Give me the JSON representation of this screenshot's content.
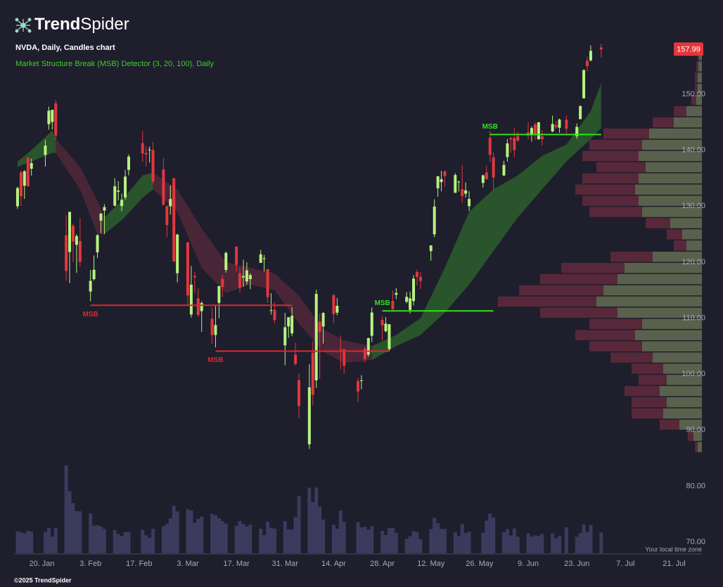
{
  "header": {
    "logo_bold": "Trend",
    "logo_light": "Spider"
  },
  "footer": {
    "timezone": "Your local time zone",
    "copyright": "©2025 TrendSpider"
  },
  "chart_data": {
    "type": "candlestick",
    "title": "NVDA, Daily, Candles chart",
    "subtitle": "Market Structure Break (MSB) Detector (3, 20, 100), Daily",
    "up_color": "#b7f27e",
    "down_color": "#e2373d",
    "volume_color": "#3b3b5e",
    "subtitle_color": "#3fcf2a",
    "x": [
      "13. Jan",
      "14. Jan",
      "15. Jan",
      "16. Jan",
      "17. Jan",
      "21. Jan",
      "22. Jan",
      "23. Jan",
      "24. Jan",
      "27. Jan",
      "28. Jan",
      "29. Jan",
      "30. Jan",
      "31. Jan",
      "3. Feb",
      "4. Feb",
      "5. Feb",
      "6. Feb",
      "7. Feb",
      "10. Feb",
      "11. Feb",
      "12. Feb",
      "13. Feb",
      "14. Feb",
      "18. Feb",
      "19. Feb",
      "20. Feb",
      "21. Feb",
      "24. Feb",
      "25. Feb",
      "26. Feb",
      "27. Feb",
      "28. Feb",
      "3. Mar",
      "4. Mar",
      "5. Mar",
      "6. Mar",
      "7. Mar",
      "10. Mar",
      "11. Mar",
      "12. Mar",
      "13. Mar",
      "14. Mar",
      "17. Mar",
      "18. Mar",
      "19. Mar",
      "20. Mar",
      "21. Mar",
      "24. Mar",
      "25. Mar",
      "26. Mar",
      "27. Mar",
      "28. Mar",
      "31. Mar",
      "1. Apr",
      "2. Apr",
      "3. Apr",
      "4. Apr",
      "7. Apr",
      "8. Apr",
      "9. Apr",
      "10. Apr",
      "11. Apr",
      "14. Apr",
      "15. Apr",
      "16. Apr",
      "17. Apr",
      "21. Apr",
      "22. Apr",
      "23. Apr",
      "24. Apr",
      "25. Apr",
      "28. Apr",
      "29. Apr",
      "30. Apr",
      "1. May",
      "2. May",
      "5. May",
      "6. May",
      "7. May",
      "8. May",
      "9. May",
      "12. May",
      "13. May",
      "14. May",
      "15. May",
      "16. May",
      "19. May",
      "20. May",
      "21. May",
      "22. May",
      "23. May",
      "27. May",
      "28. May",
      "29. May",
      "30. May",
      "2. Jun",
      "3. Jun",
      "4. Jun",
      "5. Jun",
      "6. Jun",
      "9. Jun",
      "10. Jun",
      "11. Jun",
      "12. Jun",
      "13. Jun",
      "16. Jun",
      "17. Jun",
      "18. Jun",
      "20. Jun",
      "23. Jun",
      "24. Jun",
      "25. Jun",
      "26. Jun",
      "27. Jun",
      "30. Jun"
    ],
    "open": [
      129.99,
      136.05,
      133.65,
      138.64,
      136.69,
      139.16,
      144.66,
      145.05,
      148.37,
      124.8,
      121.81,
      126.5,
      123.1,
      123.78,
      114.75,
      116.96,
      121.76,
      127.42,
      129.22,
      130.09,
      132.58,
      130.02,
      131.56,
      136.48,
      141.27,
      139.51,
      140.03,
      140.04,
      136.56,
      129.98,
      129.99,
      135.0,
      118.02,
      123.51,
      110.65,
      117.58,
      113.53,
      111.25,
      109.9,
      106.99,
      112.73,
      117.03,
      118.61,
      122.74,
      118.0,
      117.27,
      116.55,
      116.98,
      119.88,
      120.55,
      118.73,
      111.35,
      111.49,
      105.13,
      108.52,
      107.29,
      103.51,
      98.91,
      87.46,
      103.81,
      98.89,
      109.37,
      108.5,
      114.11,
      110.97,
      104.55,
      104.45,
      98.77,
      98.78,
      104.52,
      103.48,
      106.85,
      109.69,
      107.67,
      104.47,
      113.08,
      114.18,
      112.91,
      111.48,
      113.05,
      118.25,
      117.35,
      121.97,
      124.98,
      133.2,
      134.3,
      136.22,
      132.39,
      134.29,
      133.06,
      132.23,
      130.0,
      134.15,
      136.03,
      142.25,
      138.72,
      135.49,
      138.78,
      142.19,
      142.17,
      142.51,
      143.19,
      142.69,
      144.61,
      141.97,
      142.48,
      143.35,
      144.49,
      144.01,
      145.45,
      142.5,
      145.56,
      149.27,
      155.98,
      156.04,
      158.37
    ],
    "high": [
      133.49,
      136.38,
      136.45,
      138.75,
      138.5,
      141.83,
      147.79,
      147.23,
      148.97,
      128.4,
      129.0,
      126.89,
      125.0,
      127.85,
      118.57,
      121.2,
      125.0,
      128.77,
      130.37,
      135.0,
      134.48,
      132.24,
      136.5,
      139.25,
      143.44,
      140.66,
      140.67,
      141.46,
      138.59,
      130.2,
      133.73,
      135.01,
      125.09,
      123.7,
      119.31,
      118.28,
      115.35,
      113.0,
      111.85,
      112.23,
      115.35,
      117.76,
      121.89,
      122.9,
      119.02,
      120.45,
      120.0,
      117.99,
      122.22,
      121.29,
      118.84,
      114.45,
      112.87,
      110.96,
      110.2,
      111.98,
      105.63,
      100.13,
      101.75,
      105.85,
      115.1,
      110.86,
      111.06,
      114.29,
      113.62,
      106.92,
      104.47,
      99.3,
      99.81,
      104.8,
      106.54,
      111.92,
      110.37,
      110.2,
      108.92,
      114.94,
      115.4,
      114.67,
      114.74,
      117.68,
      118.68,
      118.23,
      123.0,
      131.22,
      135.44,
      136.3,
      136.35,
      135.87,
      134.58,
      137.4,
      134.25,
      132.68,
      135.66,
      137.25,
      143.49,
      139.62,
      138.12,
      142.0,
      142.39,
      144.0,
      143.27,
      145.0,
      144.29,
      144.99,
      145.0,
      143.58,
      146.18,
      145.22,
      145.65,
      146.2,
      144.78,
      147.96,
      154.45,
      156.72,
      158.71,
      158.99
    ],
    "low": [
      129.51,
      130.05,
      131.29,
      133.49,
      135.46,
      137.09,
      143.67,
      143.72,
      141.88,
      116.7,
      116.25,
      120.05,
      118.1,
      119.19,
      113.01,
      116.7,
      120.76,
      125.21,
      125.0,
      129.96,
      131.02,
      129.08,
      131.17,
      135.5,
      137.93,
      137.11,
      137.78,
      134.03,
      130.08,
      124.44,
      128.49,
      120.01,
      116.4,
      112.28,
      110.11,
      114.51,
      110.22,
      107.56,
      105.46,
      104.77,
      109.98,
      113.79,
      118.15,
      118.3,
      114.54,
      115.6,
      116.0,
      115.19,
      119.86,
      118.35,
      112.7,
      110.66,
      109.07,
      101.58,
      106.47,
      106.79,
      101.6,
      92.11,
      86.62,
      94.46,
      97.53,
      99.15,
      105.45,
      109.07,
      110.5,
      100.88,
      100.05,
      95.04,
      97.28,
      102.02,
      103.11,
      105.73,
      106.02,
      107.44,
      104.08,
      111.3,
      113.37,
      112.66,
      110.82,
      112.28,
      115.85,
      115.21,
      120.28,
      124.47,
      131.68,
      132.66,
      133.46,
      132.39,
      132.62,
      130.59,
      131.55,
      129.16,
      133.31,
      134.79,
      137.91,
      132.92,
      135.4,
      137.95,
      139.55,
      138.83,
      141.51,
      141.94,
      141.53,
      141.87,
      141.85,
      140.85,
      143.2,
      143.78,
      143.12,
      142.65,
      142.03,
      145.5,
      149.26,
      154.1,
      155.85,
      156.54
    ],
    "close": [
      133.23,
      131.76,
      136.24,
      133.57,
      137.71,
      140.83,
      147.07,
      147.22,
      142.62,
      118.42,
      128.99,
      123.7,
      124.65,
      120.07,
      116.66,
      118.65,
      124.83,
      128.68,
      129.84,
      133.57,
      132.8,
      131.14,
      135.29,
      138.85,
      139.4,
      139.23,
      140.11,
      134.43,
      130.28,
      126.63,
      131.28,
      120.15,
      124.92,
      114.06,
      115.99,
      117.3,
      110.57,
      112.69,
      106.98,
      108.76,
      115.74,
      115.58,
      121.67,
      119.53,
      115.43,
      117.52,
      118.53,
      117.7,
      121.41,
      120.69,
      113.76,
      111.43,
      109.67,
      108.38,
      110.15,
      110.42,
      101.8,
      94.31,
      97.64,
      96.3,
      114.33,
      107.57,
      110.93,
      110.71,
      112.2,
      104.49,
      101.49,
      96.91,
      98.89,
      102.71,
      106.43,
      111.01,
      108.73,
      109.02,
      108.92,
      111.61,
      114.5,
      113.82,
      113.54,
      117.06,
      117.37,
      116.65,
      123.0,
      129.93,
      135.34,
      134.83,
      135.4,
      135.57,
      134.38,
      131.8,
      132.83,
      131.29,
      135.5,
      134.81,
      139.19,
      135.13,
      137.38,
      141.22,
      141.92,
      139.99,
      141.72,
      142.63,
      143.96,
      142.83,
      145.0,
      141.97,
      144.69,
      144.12,
      145.48,
      143.85,
      144.17,
      147.9,
      154.31,
      155.02,
      157.75,
      157.99
    ],
    "volume": [
      204,
      196,
      185,
      210,
      201,
      197,
      237,
      155,
      234,
      818,
      579,
      467,
      392,
      390,
      371,
      256,
      262,
      251,
      228,
      216,
      178,
      160,
      198,
      196,
      219,
      168,
      144,
      228,
      251,
      272,
      323,
      443,
      389,
      411,
      399,
      284,
      321,
      341,
      366,
      354,
      326,
      299,
      277,
      255,
      299,
      273,
      248,
      266,
      228,
      168,
      294,
      236,
      229,
      299,
      222,
      220,
      338,
      532,
      611,
      476,
      612,
      437,
      313,
      264,
      228,
      397,
      291,
      288,
      241,
      247,
      220,
      251,
      207,
      170,
      235,
      236,
      190,
      133,
      158,
      206,
      198,
      132,
      225,
      330,
      281,
      226,
      226,
      194,
      161,
      271,
      187,
      199,
      192,
      304,
      369,
      333,
      197,
      225,
      167,
      231,
      153,
      185,
      155,
      167,
      162,
      180,
      183,
      139,
      161,
      242,
      154,
      188,
      269,
      198,
      263,
      194
    ],
    "xlim": [
      "12. Jan",
      "29. Jul"
    ],
    "xticks": [
      "20. Jan",
      "3. Feb",
      "17. Feb",
      "3. Mar",
      "17. Mar",
      "31. Mar",
      "14. Apr",
      "28. Apr",
      "12. May",
      "26. May",
      "9. Jun",
      "23. Jun",
      "7. Jul",
      "21. Jul"
    ],
    "ylim": [
      68,
      159.3
    ],
    "yticks": [
      {
        "value": 70,
        "label": "70.00"
      },
      {
        "value": 80,
        "label": "80.00"
      },
      {
        "value": 90,
        "label": "90.00"
      },
      {
        "value": 100,
        "label": "100.00"
      },
      {
        "value": 110,
        "label": "110.00"
      },
      {
        "value": 120,
        "label": "120.00"
      },
      {
        "value": 130,
        "label": "130.00"
      },
      {
        "value": 140,
        "label": "140.00"
      },
      {
        "value": 150,
        "label": "150.00"
      }
    ],
    "grid": false,
    "bands": [
      {
        "color": "#2f6b2c",
        "x": [
          "13. Jan",
          "17. Jan",
          "23. Jan",
          "24. Jan"
        ],
        "upper": [
          138,
          140,
          143.5,
          142
        ],
        "lower": [
          137,
          138,
          139.5,
          139.5
        ]
      },
      {
        "color": "#5b2a3c",
        "x": [
          "24. Jan",
          "31. Jan",
          "5. Feb",
          "7. Feb"
        ],
        "upper": [
          142,
          137,
          131,
          128
        ],
        "lower": [
          139.5,
          133,
          125,
          125
        ]
      },
      {
        "color": "#2f6b2c",
        "x": [
          "7. Feb",
          "12. Feb",
          "18. Feb",
          "21. Feb"
        ],
        "upper": [
          128,
          131,
          135.5,
          136
        ],
        "lower": [
          125,
          127.5,
          131.5,
          133
        ]
      },
      {
        "color": "#5b2a3c",
        "x": [
          "21. Feb",
          "28. Feb",
          "7. Mar",
          "14. Mar",
          "21. Mar",
          "28. Mar",
          "4. Apr",
          "11. Apr",
          "17. Apr",
          "25. Apr"
        ],
        "upper": [
          136,
          133,
          126,
          120,
          119,
          118,
          114,
          108,
          106,
          105
        ],
        "lower": [
          133,
          129,
          119,
          114.5,
          116,
          115,
          109,
          104,
          102,
          102.5
        ]
      },
      {
        "color": "#2f6b2c",
        "x": [
          "25. Apr",
          "2. May",
          "9. May",
          "16. May",
          "23. May",
          "30. May",
          "6. Jun",
          "13. Jun",
          "20. Jun",
          "27. Jun",
          "30. Jun"
        ],
        "upper": [
          105,
          107,
          110,
          119,
          129,
          133,
          135.5,
          139,
          141,
          147,
          152
        ],
        "lower": [
          102.5,
          105,
          107,
          111,
          116,
          122,
          128,
          133,
          138,
          142,
          144
        ]
      }
    ],
    "annotations": [
      {
        "text": "MSB",
        "color": "#e0262b",
        "y": 112.3,
        "x": [
          "3. Feb",
          "2. Apr"
        ],
        "label_position": "below"
      },
      {
        "text": "MSB",
        "color": "#e0262b",
        "y": 104.1,
        "x": [
          "11. Mar",
          "30. Apr"
        ],
        "label_position": "below"
      },
      {
        "text": "MSB",
        "color": "#33e01a",
        "y": 111.3,
        "x": [
          "28. Apr",
          "30. May"
        ],
        "label_position": "above"
      },
      {
        "text": "MSB",
        "color": "#33e01a",
        "y": 142.8,
        "x": [
          "29. May",
          "30. Jun"
        ],
        "label_position": "above"
      }
    ],
    "volume_profile": {
      "up_color": "#6e7857",
      "down_color": "#6b2c3d",
      "bins": [
        86,
        88,
        90,
        92,
        94,
        96,
        98,
        100,
        102,
        104,
        106,
        108,
        110,
        112,
        114,
        116,
        118,
        120,
        122,
        124,
        126,
        128,
        130,
        132,
        134,
        136,
        138,
        140,
        142,
        144,
        146,
        148,
        150,
        152,
        154,
        156,
        158
      ],
      "up": [
        6,
        12,
        32,
        55,
        50,
        60,
        50,
        55,
        70,
        85,
        95,
        85,
        120,
        150,
        140,
        120,
        110,
        70,
        22,
        28,
        45,
        85,
        90,
        95,
        90,
        80,
        90,
        85,
        75,
        40,
        22,
        8,
        6,
        6,
        5,
        4
      ],
      "down": [
        4,
        8,
        28,
        45,
        50,
        50,
        40,
        45,
        60,
        75,
        85,
        75,
        110,
        140,
        120,
        110,
        90,
        60,
        18,
        22,
        35,
        75,
        80,
        85,
        80,
        70,
        80,
        75,
        65,
        30,
        18,
        7,
        4,
        4,
        3,
        2
      ]
    }
  }
}
